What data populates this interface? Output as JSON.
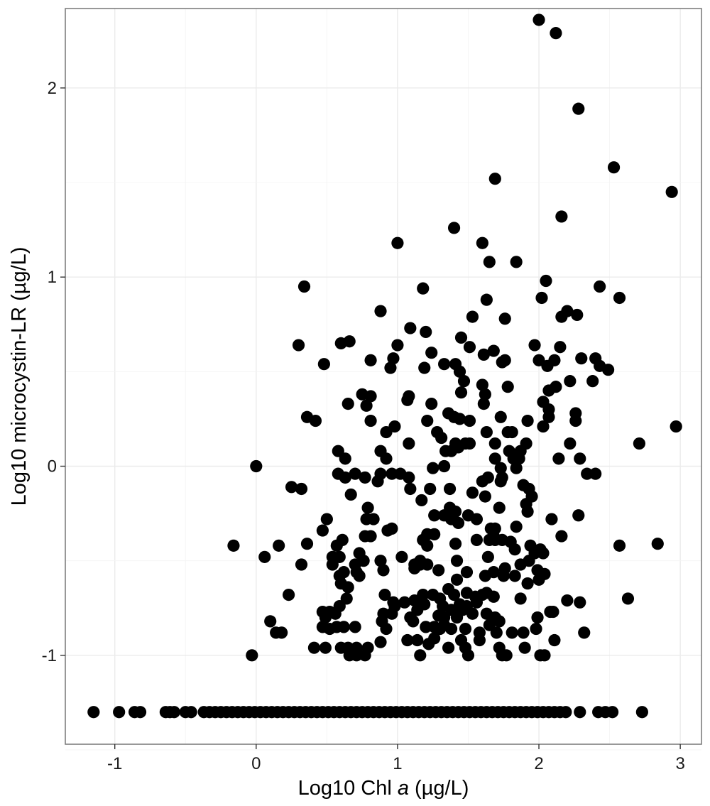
{
  "chart_data": {
    "type": "scatter",
    "title": "",
    "xlabel_parts": [
      "Log10 Chl ",
      "a",
      " (µg/L)"
    ],
    "ylabel": "Log10 microcystin-LR (µg/L)",
    "xlim": [
      -1.35,
      3.15
    ],
    "ylim": [
      -1.47,
      2.42
    ],
    "x_ticks": [
      -1,
      0,
      1,
      2,
      3
    ],
    "x_tick_labels": [
      "-1",
      "0",
      "1",
      "2",
      "3"
    ],
    "y_ticks": [
      -1,
      0,
      1,
      2
    ],
    "y_tick_labels": [
      "-1",
      "0",
      "1",
      "2"
    ],
    "grid": true,
    "marker_color": "#000000",
    "points": [
      [
        2.0,
        2.36
      ],
      [
        2.12,
        2.29
      ],
      [
        2.28,
        1.89
      ],
      [
        2.53,
        1.58
      ],
      [
        2.94,
        1.45
      ],
      [
        1.69,
        1.52
      ],
      [
        2.16,
        1.32
      ],
      [
        1.4,
        1.26
      ],
      [
        1.0,
        1.18
      ],
      [
        1.6,
        1.18
      ],
      [
        1.65,
        1.08
      ],
      [
        1.84,
        1.08
      ],
      [
        2.05,
        0.98
      ],
      [
        0.34,
        0.95
      ],
      [
        1.18,
        0.94
      ],
      [
        2.43,
        0.95
      ],
      [
        2.57,
        0.89
      ],
      [
        1.63,
        0.88
      ],
      [
        2.02,
        0.89
      ],
      [
        0.88,
        0.82
      ],
      [
        2.2,
        0.82
      ],
      [
        2.27,
        0.8
      ],
      [
        1.53,
        0.79
      ],
      [
        1.76,
        0.78
      ],
      [
        2.16,
        0.79
      ],
      [
        1.09,
        0.73
      ],
      [
        0.3,
        0.64
      ],
      [
        0.6,
        0.65
      ],
      [
        0.66,
        0.66
      ],
      [
        1.0,
        0.64
      ],
      [
        1.2,
        0.71
      ],
      [
        1.45,
        0.68
      ],
      [
        1.97,
        0.64
      ],
      [
        2.15,
        0.63
      ],
      [
        0.48,
        0.54
      ],
      [
        0.81,
        0.56
      ],
      [
        0.95,
        0.52
      ],
      [
        0.97,
        0.57
      ],
      [
        1.19,
        0.52
      ],
      [
        1.24,
        0.6
      ],
      [
        1.33,
        0.54
      ],
      [
        1.41,
        0.54
      ],
      [
        1.51,
        0.63
      ],
      [
        1.61,
        0.59
      ],
      [
        1.68,
        0.61
      ],
      [
        1.74,
        0.55
      ],
      [
        1.76,
        0.56
      ],
      [
        2.0,
        0.56
      ],
      [
        2.06,
        0.53
      ],
      [
        2.11,
        0.56
      ],
      [
        2.3,
        0.57
      ],
      [
        2.4,
        0.57
      ],
      [
        2.49,
        0.51
      ],
      [
        2.43,
        0.53
      ],
      [
        1.44,
        0.5
      ],
      [
        1.47,
        0.45
      ],
      [
        1.6,
        0.43
      ],
      [
        1.78,
        0.42
      ],
      [
        2.07,
        0.4
      ],
      [
        2.12,
        0.42
      ],
      [
        2.22,
        0.45
      ],
      [
        2.38,
        0.45
      ],
      [
        1.08,
        0.37
      ],
      [
        1.07,
        0.35
      ],
      [
        1.45,
        0.39
      ],
      [
        1.62,
        0.38
      ],
      [
        0.75,
        0.38
      ],
      [
        0.81,
        0.37
      ],
      [
        0.65,
        0.33
      ],
      [
        0.78,
        0.32
      ],
      [
        1.24,
        0.33
      ],
      [
        1.36,
        0.28
      ],
      [
        1.4,
        0.26
      ],
      [
        1.44,
        0.25
      ],
      [
        1.61,
        0.33
      ],
      [
        1.73,
        0.26
      ],
      [
        2.03,
        0.34
      ],
      [
        2.07,
        0.3
      ],
      [
        2.07,
        0.26
      ],
      [
        2.26,
        0.28
      ],
      [
        0.36,
        0.26
      ],
      [
        0.42,
        0.24
      ],
      [
        0.81,
        0.24
      ],
      [
        0.98,
        0.21
      ],
      [
        1.21,
        0.24
      ],
      [
        1.28,
        0.18
      ],
      [
        1.31,
        0.15
      ],
      [
        1.41,
        0.12
      ],
      [
        1.51,
        0.24
      ],
      [
        1.63,
        0.18
      ],
      [
        1.78,
        0.18
      ],
      [
        1.81,
        0.18
      ],
      [
        1.92,
        0.24
      ],
      [
        2.03,
        0.21
      ],
      [
        2.26,
        0.24
      ],
      [
        2.97,
        0.21
      ],
      [
        0.92,
        0.18
      ],
      [
        1.08,
        0.12
      ],
      [
        1.34,
        0.08
      ],
      [
        1.38,
        0.08
      ],
      [
        1.43,
        0.1
      ],
      [
        1.48,
        0.12
      ],
      [
        1.51,
        0.12
      ],
      [
        1.69,
        0.12
      ],
      [
        1.79,
        0.08
      ],
      [
        1.87,
        0.08
      ],
      [
        1.91,
        0.12
      ],
      [
        2.22,
        0.12
      ],
      [
        2.71,
        0.12
      ],
      [
        0.58,
        0.08
      ],
      [
        0.88,
        0.08
      ],
      [
        0.63,
        0.04
      ],
      [
        0.92,
        0.04
      ],
      [
        1.69,
        0.04
      ],
      [
        1.82,
        0.04
      ],
      [
        1.86,
        0.04
      ],
      [
        2.14,
        0.04
      ],
      [
        2.29,
        0.04
      ],
      [
        1.33,
        0.0
      ],
      [
        1.25,
        -0.01
      ],
      [
        1.73,
        -0.01
      ],
      [
        1.84,
        -0.01
      ],
      [
        0.0,
        0.0
      ],
      [
        0.58,
        -0.04
      ],
      [
        0.63,
        -0.06
      ],
      [
        0.7,
        -0.04
      ],
      [
        0.77,
        -0.06
      ],
      [
        0.88,
        -0.04
      ],
      [
        0.96,
        -0.04
      ],
      [
        1.02,
        -0.04
      ],
      [
        1.08,
        -0.06
      ],
      [
        1.64,
        -0.06
      ],
      [
        1.74,
        -0.06
      ],
      [
        2.34,
        -0.04
      ],
      [
        2.4,
        -0.04
      ],
      [
        0.25,
        -0.11
      ],
      [
        0.32,
        -0.12
      ],
      [
        0.67,
        -0.15
      ],
      [
        0.86,
        -0.08
      ],
      [
        1.09,
        -0.12
      ],
      [
        1.23,
        -0.12
      ],
      [
        1.37,
        -0.12
      ],
      [
        1.53,
        -0.14
      ],
      [
        1.6,
        -0.08
      ],
      [
        1.73,
        -0.08
      ],
      [
        1.89,
        -0.1
      ],
      [
        1.93,
        -0.12
      ],
      [
        1.95,
        -0.16
      ],
      [
        1.17,
        -0.18
      ],
      [
        1.62,
        -0.16
      ],
      [
        1.72,
        -0.22
      ],
      [
        1.91,
        -0.2
      ],
      [
        0.79,
        -0.22
      ],
      [
        1.37,
        -0.22
      ],
      [
        1.41,
        -0.24
      ],
      [
        1.33,
        -0.26
      ],
      [
        1.26,
        -0.26
      ],
      [
        1.38,
        -0.28
      ],
      [
        1.5,
        -0.26
      ],
      [
        1.56,
        -0.28
      ],
      [
        1.92,
        -0.24
      ],
      [
        2.09,
        -0.28
      ],
      [
        2.28,
        -0.26
      ],
      [
        0.5,
        -0.28
      ],
      [
        0.47,
        -0.34
      ],
      [
        0.78,
        -0.28
      ],
      [
        0.83,
        -0.28
      ],
      [
        0.93,
        -0.34
      ],
      [
        0.96,
        -0.33
      ],
      [
        1.21,
        -0.36
      ],
      [
        1.26,
        -0.36
      ],
      [
        1.43,
        -0.3
      ],
      [
        1.66,
        -0.33
      ],
      [
        1.69,
        -0.33
      ],
      [
        1.84,
        -0.32
      ],
      [
        1.65,
        -0.39
      ],
      [
        1.68,
        -0.37
      ],
      [
        1.74,
        -0.39
      ],
      [
        2.16,
        -0.37
      ],
      [
        1.41,
        -0.41
      ],
      [
        1.56,
        -0.39
      ],
      [
        1.69,
        -0.39
      ],
      [
        0.61,
        -0.39
      ],
      [
        0.77,
        -0.37
      ],
      [
        0.81,
        -0.37
      ],
      [
        1.18,
        -0.39
      ],
      [
        1.21,
        -0.42
      ],
      [
        1.8,
        -0.4
      ],
      [
        1.83,
        -0.44
      ],
      [
        1.94,
        -0.42
      ],
      [
        1.97,
        -0.46
      ],
      [
        2.01,
        -0.44
      ],
      [
        2.03,
        -0.46
      ],
      [
        2.57,
        -0.42
      ],
      [
        2.84,
        -0.41
      ],
      [
        -0.16,
        -0.42
      ],
      [
        0.16,
        -0.42
      ],
      [
        0.36,
        -0.41
      ],
      [
        0.57,
        -0.42
      ],
      [
        0.59,
        -0.48
      ],
      [
        0.54,
        -0.48
      ],
      [
        0.73,
        -0.46
      ],
      [
        0.76,
        -0.5
      ],
      [
        0.7,
        -0.52
      ],
      [
        0.88,
        -0.5
      ],
      [
        1.03,
        -0.48
      ],
      [
        1.12,
        -0.52
      ],
      [
        1.16,
        -0.5
      ],
      [
        1.21,
        -0.52
      ],
      [
        1.42,
        -0.5
      ],
      [
        1.64,
        -0.48
      ],
      [
        1.76,
        -0.54
      ],
      [
        1.87,
        -0.52
      ],
      [
        1.93,
        -0.5
      ],
      [
        1.99,
        -0.55
      ],
      [
        2.04,
        -0.57
      ],
      [
        1.92,
        -0.62
      ],
      [
        0.06,
        -0.48
      ],
      [
        0.32,
        -0.52
      ],
      [
        0.54,
        -0.52
      ],
      [
        0.59,
        -0.58
      ],
      [
        0.62,
        -0.56
      ],
      [
        0.71,
        -0.56
      ],
      [
        0.6,
        -0.62
      ],
      [
        0.65,
        -0.64
      ],
      [
        0.73,
        -0.58
      ],
      [
        0.9,
        -0.55
      ],
      [
        1.12,
        -0.54
      ],
      [
        1.16,
        -0.52
      ],
      [
        1.29,
        -0.55
      ],
      [
        1.49,
        -0.56
      ],
      [
        1.62,
        -0.58
      ],
      [
        1.68,
        -0.56
      ],
      [
        1.75,
        -0.58
      ],
      [
        1.83,
        -0.58
      ],
      [
        1.42,
        -0.6
      ],
      [
        1.36,
        -0.65
      ],
      [
        1.18,
        -0.68
      ],
      [
        1.25,
        -0.68
      ],
      [
        1.3,
        -0.7
      ],
      [
        1.4,
        -0.68
      ],
      [
        1.49,
        -0.67
      ],
      [
        1.55,
        -0.69
      ],
      [
        1.6,
        -0.68
      ],
      [
        1.63,
        -0.67
      ],
      [
        1.68,
        -0.69
      ],
      [
        2.0,
        -0.6
      ],
      [
        0.23,
        -0.68
      ],
      [
        0.64,
        -0.7
      ],
      [
        0.59,
        -0.74
      ],
      [
        0.91,
        -0.68
      ],
      [
        0.97,
        -0.72
      ],
      [
        1.05,
        -0.72
      ],
      [
        1.12,
        -0.71
      ],
      [
        1.19,
        -0.73
      ],
      [
        1.32,
        -0.74
      ],
      [
        1.38,
        -0.76
      ],
      [
        1.44,
        -0.73
      ],
      [
        1.46,
        -0.76
      ],
      [
        1.49,
        -0.74
      ],
      [
        1.56,
        -0.72
      ],
      [
        1.53,
        -0.78
      ],
      [
        1.63,
        -0.78
      ],
      [
        1.87,
        -0.7
      ],
      [
        2.2,
        -0.71
      ],
      [
        2.29,
        -0.72
      ],
      [
        2.63,
        -0.7
      ],
      [
        0.98,
        -0.74
      ],
      [
        0.47,
        -0.77
      ],
      [
        0.52,
        -0.77
      ],
      [
        0.56,
        -0.78
      ],
      [
        0.9,
        -0.78
      ],
      [
        0.96,
        -0.78
      ],
      [
        1.14,
        -0.76
      ],
      [
        1.09,
        -0.8
      ],
      [
        1.29,
        -0.79
      ],
      [
        1.33,
        -0.8
      ],
      [
        1.42,
        -0.8
      ],
      [
        1.69,
        -0.8
      ],
      [
        1.72,
        -0.82
      ],
      [
        1.99,
        -0.8
      ],
      [
        2.08,
        -0.77
      ],
      [
        2.1,
        -0.77
      ],
      [
        0.49,
        -0.8
      ],
      [
        0.47,
        -0.85
      ],
      [
        0.52,
        -0.86
      ],
      [
        0.57,
        -0.85
      ],
      [
        0.62,
        -0.85
      ],
      [
        0.7,
        -0.85
      ],
      [
        0.89,
        -0.82
      ],
      [
        0.92,
        -0.86
      ],
      [
        1.11,
        -0.82
      ],
      [
        1.2,
        -0.85
      ],
      [
        1.26,
        -0.85
      ],
      [
        1.3,
        -0.86
      ],
      [
        1.33,
        -0.84
      ],
      [
        1.38,
        -0.86
      ],
      [
        1.48,
        -0.86
      ],
      [
        1.58,
        -0.88
      ],
      [
        1.65,
        -0.84
      ],
      [
        1.7,
        -0.88
      ],
      [
        1.81,
        -0.88
      ],
      [
        1.89,
        -0.88
      ],
      [
        1.98,
        -0.86
      ],
      [
        2.32,
        -0.88
      ],
      [
        0.1,
        -0.82
      ],
      [
        0.14,
        -0.88
      ],
      [
        0.18,
        -0.88
      ],
      [
        0.41,
        -0.96
      ],
      [
        0.49,
        -0.96
      ],
      [
        0.6,
        -0.96
      ],
      [
        0.65,
        -0.96
      ],
      [
        0.71,
        -0.96
      ],
      [
        0.79,
        -0.96
      ],
      [
        0.66,
        -1.0
      ],
      [
        0.71,
        -1.0
      ],
      [
        0.77,
        -1.0
      ],
      [
        0.88,
        -0.93
      ],
      [
        1.07,
        -0.92
      ],
      [
        1.14,
        -0.92
      ],
      [
        1.16,
        -1.0
      ],
      [
        1.22,
        -0.94
      ],
      [
        1.26,
        -0.91
      ],
      [
        1.36,
        -0.96
      ],
      [
        1.45,
        -0.92
      ],
      [
        1.48,
        -0.96
      ],
      [
        1.5,
        -1.0
      ],
      [
        1.58,
        -0.92
      ],
      [
        1.72,
        -0.96
      ],
      [
        1.74,
        -1.0
      ],
      [
        1.77,
        -1.0
      ],
      [
        1.9,
        -0.96
      ],
      [
        2.01,
        -1.0
      ],
      [
        2.04,
        -1.0
      ],
      [
        2.11,
        -0.92
      ],
      [
        -0.03,
        -1.0
      ],
      [
        -1.15,
        -1.3
      ],
      [
        -0.97,
        -1.3
      ],
      [
        -0.86,
        -1.3
      ],
      [
        -0.82,
        -1.3
      ],
      [
        -0.64,
        -1.3
      ],
      [
        -0.61,
        -1.3
      ],
      [
        -0.58,
        -1.3
      ],
      [
        -0.5,
        -1.3
      ],
      [
        -0.46,
        -1.3
      ],
      [
        -0.37,
        -1.3
      ],
      [
        -0.33,
        -1.3
      ],
      [
        -0.29,
        -1.3
      ],
      [
        -0.25,
        -1.3
      ],
      [
        -0.21,
        -1.3
      ],
      [
        -0.17,
        -1.3
      ],
      [
        -0.13,
        -1.3
      ],
      [
        -0.09,
        -1.3
      ],
      [
        -0.05,
        -1.3
      ],
      [
        -0.01,
        -1.3
      ],
      [
        0.03,
        -1.3
      ],
      [
        0.07,
        -1.3
      ],
      [
        0.11,
        -1.3
      ],
      [
        0.15,
        -1.3
      ],
      [
        0.19,
        -1.3
      ],
      [
        0.23,
        -1.3
      ],
      [
        0.27,
        -1.3
      ],
      [
        0.31,
        -1.3
      ],
      [
        0.35,
        -1.3
      ],
      [
        0.39,
        -1.3
      ],
      [
        0.43,
        -1.3
      ],
      [
        0.47,
        -1.3
      ],
      [
        0.51,
        -1.3
      ],
      [
        0.55,
        -1.3
      ],
      [
        0.59,
        -1.3
      ],
      [
        0.63,
        -1.3
      ],
      [
        0.67,
        -1.3
      ],
      [
        0.71,
        -1.3
      ],
      [
        0.75,
        -1.3
      ],
      [
        0.79,
        -1.3
      ],
      [
        0.83,
        -1.3
      ],
      [
        0.87,
        -1.3
      ],
      [
        0.91,
        -1.3
      ],
      [
        0.95,
        -1.3
      ],
      [
        0.99,
        -1.3
      ],
      [
        1.03,
        -1.3
      ],
      [
        1.07,
        -1.3
      ],
      [
        1.11,
        -1.3
      ],
      [
        1.15,
        -1.3
      ],
      [
        1.19,
        -1.3
      ],
      [
        1.23,
        -1.3
      ],
      [
        1.27,
        -1.3
      ],
      [
        1.31,
        -1.3
      ],
      [
        1.35,
        -1.3
      ],
      [
        1.39,
        -1.3
      ],
      [
        1.43,
        -1.3
      ],
      [
        1.47,
        -1.3
      ],
      [
        1.51,
        -1.3
      ],
      [
        1.55,
        -1.3
      ],
      [
        1.59,
        -1.3
      ],
      [
        1.63,
        -1.3
      ],
      [
        1.67,
        -1.3
      ],
      [
        1.71,
        -1.3
      ],
      [
        1.75,
        -1.3
      ],
      [
        1.79,
        -1.3
      ],
      [
        1.83,
        -1.3
      ],
      [
        1.87,
        -1.3
      ],
      [
        1.91,
        -1.3
      ],
      [
        1.95,
        -1.3
      ],
      [
        1.99,
        -1.3
      ],
      [
        2.03,
        -1.3
      ],
      [
        2.07,
        -1.3
      ],
      [
        2.11,
        -1.3
      ],
      [
        2.15,
        -1.3
      ],
      [
        2.19,
        -1.3
      ],
      [
        2.29,
        -1.3
      ],
      [
        2.42,
        -1.3
      ],
      [
        2.47,
        -1.3
      ],
      [
        2.52,
        -1.3
      ],
      [
        2.73,
        -1.3
      ]
    ]
  }
}
